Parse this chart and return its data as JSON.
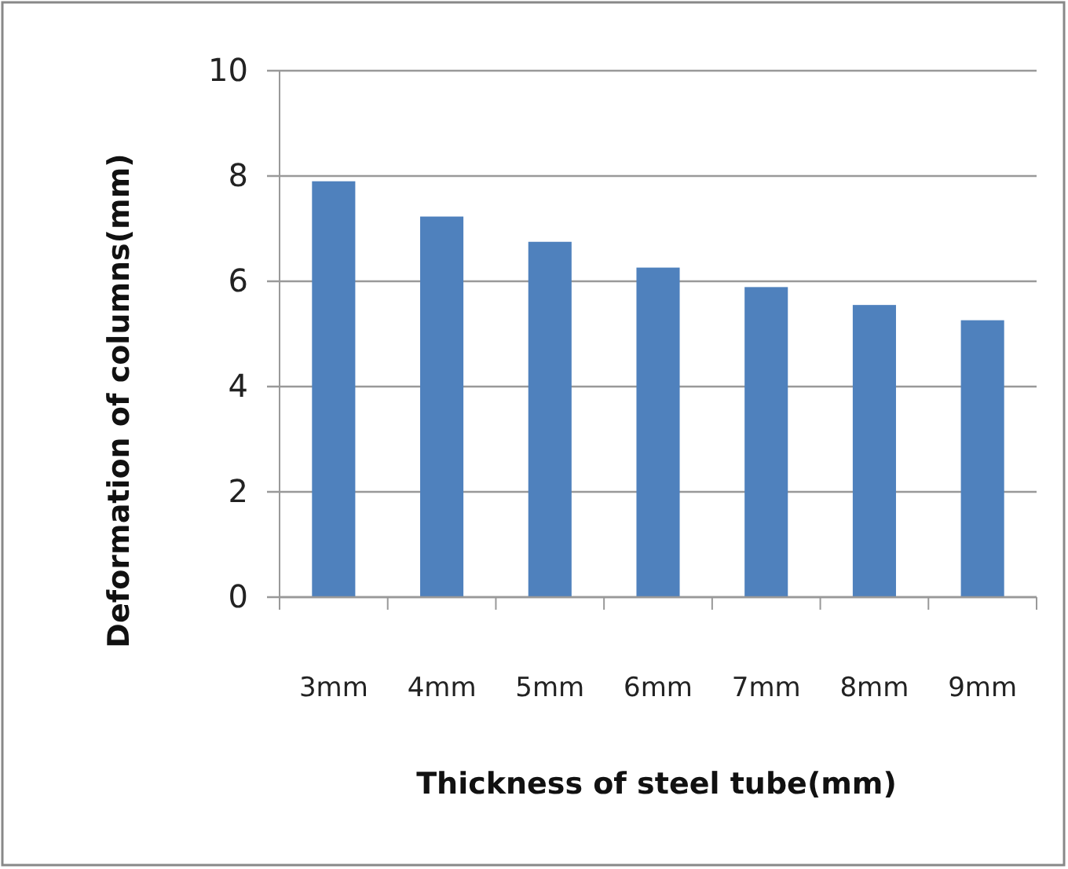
{
  "chart_data": {
    "type": "bar",
    "xlabel": "Thickness of steel tube(mm)",
    "ylabel": "Deformation of columns(mm)",
    "categories": [
      "3mm",
      "4mm",
      "5mm",
      "6mm",
      "7mm",
      "8mm",
      "9mm"
    ],
    "values": [
      7.9,
      7.23,
      6.75,
      6.26,
      5.89,
      5.55,
      5.26
    ],
    "color": "#4f81bd",
    "ylim": [
      0,
      10
    ],
    "yticks": [
      0,
      2,
      4,
      6,
      8,
      10
    ],
    "grid": "y"
  }
}
